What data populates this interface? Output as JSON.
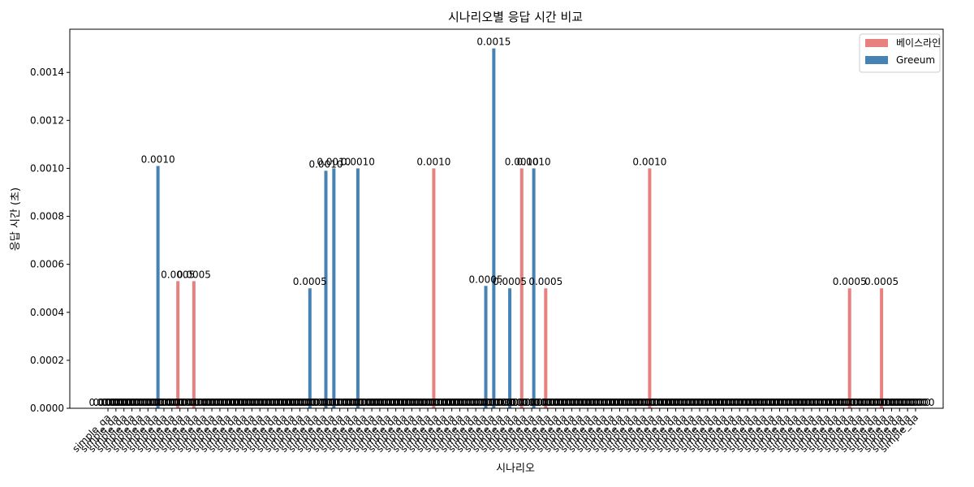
{
  "chart_data": {
    "type": "bar",
    "title": "시나리오별 응답 시간 비교",
    "xlabel": "시나리오",
    "ylabel": "응답 시간 (초)",
    "ylim": [
      0,
      0.00158
    ],
    "yticks": [
      "0.0000",
      "0.0002",
      "0.0004",
      "0.0006",
      "0.0008",
      "0.0010",
      "0.0012",
      "0.0014"
    ],
    "ytick_values": [
      0,
      0.0002,
      0.0004,
      0.0006,
      0.0008,
      0.001,
      0.0012,
      0.0014
    ],
    "grid": false,
    "legend_position": "top-right",
    "category_label": "simple_qa",
    "category_count": 102,
    "series": [
      {
        "name": "베이스라인",
        "color": "#e88080",
        "nonzero": [
          {
            "index": 9,
            "value": 0.00053,
            "label": "0.0005"
          },
          {
            "index": 11,
            "value": 0.00053,
            "label": "0.0005"
          },
          {
            "index": 41,
            "value": 0.001,
            "label": "0.0010"
          },
          {
            "index": 52,
            "value": 0.001,
            "label": "0.0010"
          },
          {
            "index": 55,
            "value": 0.0005,
            "label": "0.0005"
          },
          {
            "index": 68,
            "value": 0.001,
            "label": "0.0010"
          },
          {
            "index": 93,
            "value": 0.0005,
            "label": "0.0005"
          },
          {
            "index": 97,
            "value": 0.0005,
            "label": "0.0005"
          }
        ]
      },
      {
        "name": "Greeum",
        "color": "#4682b4",
        "nonzero": [
          {
            "index": 6,
            "value": 0.00101,
            "label": "0.0010"
          },
          {
            "index": 25,
            "value": 0.0005,
            "label": "0.0005"
          },
          {
            "index": 27,
            "value": 0.00099,
            "label": "0.0010"
          },
          {
            "index": 28,
            "value": 0.001,
            "label": "0.0010"
          },
          {
            "index": 31,
            "value": 0.001,
            "label": "0.0010"
          },
          {
            "index": 47,
            "value": 0.00051,
            "label": "0.0005"
          },
          {
            "index": 48,
            "value": 0.0015,
            "label": "0.0015"
          },
          {
            "index": 50,
            "value": 0.0005,
            "label": "0.0005"
          },
          {
            "index": 53,
            "value": 0.001,
            "label": "0.0010"
          }
        ]
      }
    ],
    "zero_label": "0.0000"
  }
}
